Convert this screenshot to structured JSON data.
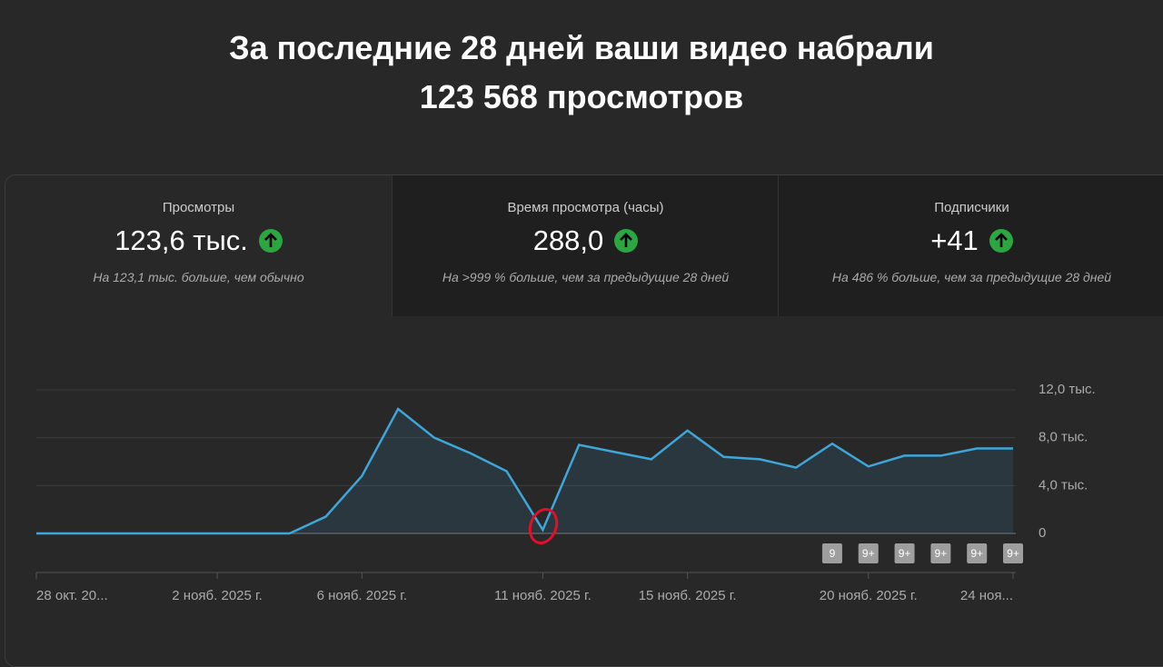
{
  "header": {
    "lines": [
      "За последние 28 дней ваши видео набрали",
      "123 568 просмотров"
    ]
  },
  "cards": [
    {
      "label": "Просмотры",
      "value": "123,6 тыс.",
      "note": "На 123,1 тыс. больше, чем обычно"
    },
    {
      "label": "Время просмотра (часы)",
      "value": "288,0",
      "note": "На >999 % больше, чем за предыдущие 28 дней"
    },
    {
      "label": "Подписчики",
      "value": "+41",
      "note": "На 486 % больше, чем за предыдущие 28 дней"
    }
  ],
  "chart_data": {
    "type": "line",
    "color": "#3ea6d8",
    "grid": true,
    "categories": [
      "28 окт. 20...",
      null,
      null,
      null,
      null,
      "2 нояб. 2025 г.",
      null,
      null,
      null,
      "6 нояб. 2025 г.",
      null,
      null,
      null,
      null,
      "11 нояб. 2025 г.",
      null,
      null,
      null,
      "15 нояб. 2025 г.",
      null,
      null,
      null,
      null,
      "20 нояб. 2025 г.",
      null,
      null,
      null,
      "24 ноя..."
    ],
    "values": [
      0,
      0,
      0,
      0,
      0,
      0,
      0,
      0,
      1400,
      4800,
      10400,
      8000,
      6700,
      5200,
      300,
      7400,
      6800,
      6200,
      8600,
      6400,
      6200,
      5500,
      7500,
      5600,
      6500,
      6500,
      7100,
      7100
    ],
    "ylim": [
      0,
      12000
    ],
    "yticks": [
      0,
      {
        "value": 4000,
        "label": "4,0 тыс."
      },
      {
        "value": 8000,
        "label": "8,0 тыс."
      },
      {
        "value": 12000,
        "label": "12,0 тыс."
      }
    ],
    "markers": [
      "9",
      "9+",
      "9+",
      "9+",
      "9+",
      "9+"
    ]
  }
}
